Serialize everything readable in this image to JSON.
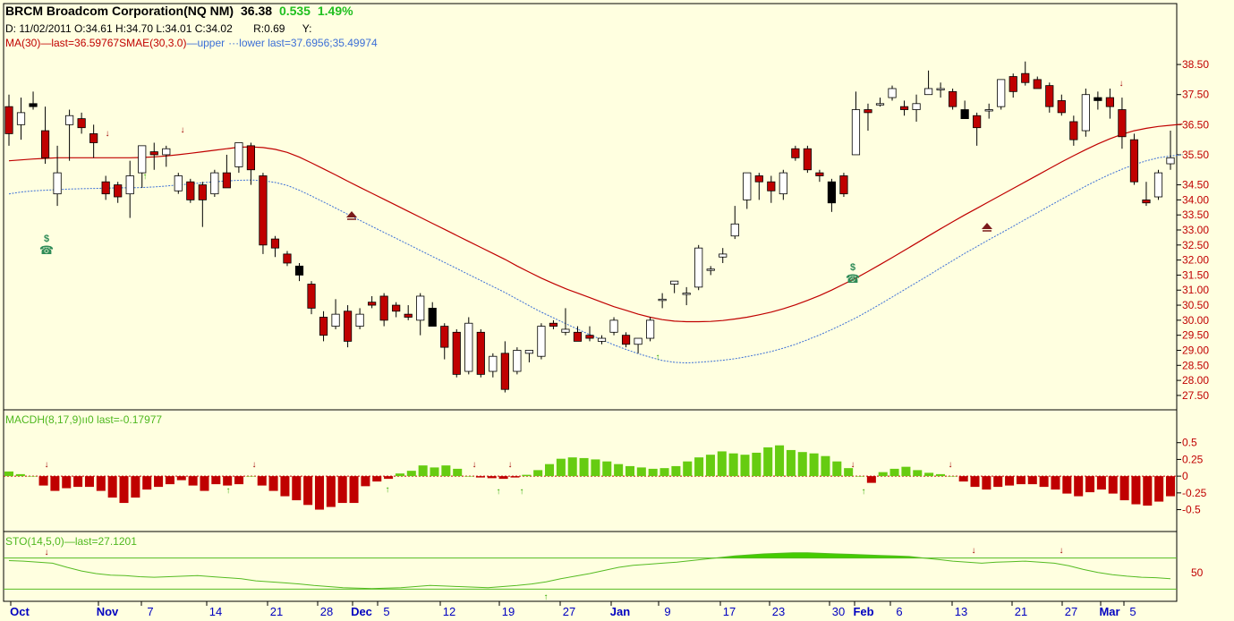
{
  "header": {
    "ticker_line": "BRCM Broadcom Corporation(NQ NM)",
    "price": "36.38",
    "change": "0.535",
    "change_pct": "1.49%",
    "ohlc_line": "D: 11/02/2011 O:34.61 H:34.70 L:34.01 C:34.02",
    "r_label": "R:0.69",
    "y_label": "Y:",
    "ma_legend": "MA(30)",
    "ma_last": "last=36.59767",
    "smae_legend": "SMAE(30,3.0)",
    "smae_upper": "upper",
    "smae_lower": "lower",
    "smae_last": "last=37.6956;35.49974"
  },
  "colors": {
    "background": "#FFFFE0",
    "up_candle": "#FFFFFF",
    "down_candle": "#C00000",
    "ma_line": "#C00000",
    "smae_line": "#3C6FD6",
    "macd_pos": "#66CC11",
    "macd_neg": "#C00000",
    "sto_fill": "#44CC00",
    "axis_text": "#C00000",
    "date_text": "#0000C0"
  },
  "chart_data": [
    {
      "type": "candlestick",
      "ylim": [
        27.2,
        38.8
      ],
      "y_ticks": [
        "38.50",
        "37.50",
        "36.50",
        "35.50",
        "34.50",
        "34.00",
        "33.50",
        "33.00",
        "32.50",
        "32.00",
        "31.50",
        "31.00",
        "30.50",
        "30.00",
        "29.50",
        "29.00",
        "28.50",
        "28.00",
        "27.50"
      ],
      "x_labels": [
        "Oct",
        "Nov",
        "7",
        "14",
        "21",
        "28",
        "Dec",
        "5",
        "12",
        "19",
        "27",
        "Jan",
        "9",
        "17",
        "23",
        "30",
        "Feb",
        "6",
        "13",
        "21",
        "27",
        "Mar",
        "5"
      ],
      "ohlc": [
        [
          37.1,
          37.5,
          35.8,
          36.2
        ],
        [
          36.5,
          37.4,
          36.0,
          36.9
        ],
        [
          37.2,
          37.6,
          37.0,
          37.1
        ],
        [
          36.3,
          37.1,
          35.2,
          35.4
        ],
        [
          34.2,
          35.8,
          33.8,
          34.9
        ],
        [
          36.5,
          37.0,
          35.3,
          36.8
        ],
        [
          36.7,
          36.9,
          36.2,
          36.4
        ],
        [
          36.2,
          36.5,
          35.4,
          35.9
        ],
        [
          34.6,
          34.8,
          34.0,
          34.2
        ],
        [
          34.5,
          34.6,
          33.9,
          34.1
        ],
        [
          34.2,
          35.3,
          33.4,
          34.8
        ],
        [
          34.9,
          35.8,
          34.4,
          35.8
        ],
        [
          35.6,
          35.9,
          35.0,
          35.5
        ],
        [
          35.5,
          35.8,
          35.1,
          35.7
        ],
        [
          34.3,
          34.9,
          34.2,
          34.8
        ],
        [
          34.6,
          34.7,
          33.9,
          34.0
        ],
        [
          34.5,
          34.6,
          33.1,
          34.0
        ],
        [
          34.2,
          35.0,
          34.1,
          34.9
        ],
        [
          34.9,
          35.5,
          34.5,
          34.4
        ],
        [
          35.1,
          35.9,
          34.9,
          35.9
        ],
        [
          35.8,
          35.9,
          34.5,
          35.0
        ],
        [
          34.8,
          34.9,
          32.2,
          32.5
        ],
        [
          32.7,
          32.8,
          32.1,
          32.4
        ],
        [
          32.2,
          32.3,
          31.8,
          31.9
        ],
        [
          31.8,
          31.9,
          31.3,
          31.5
        ],
        [
          31.2,
          31.3,
          30.2,
          30.4
        ],
        [
          30.1,
          30.3,
          29.3,
          29.5
        ],
        [
          29.8,
          30.7,
          29.7,
          30.2
        ],
        [
          30.3,
          30.5,
          29.1,
          29.3
        ],
        [
          29.8,
          30.4,
          29.7,
          30.2
        ],
        [
          30.6,
          30.8,
          30.4,
          30.5
        ],
        [
          30.8,
          30.9,
          29.8,
          30.0
        ],
        [
          30.5,
          30.6,
          30.1,
          30.3
        ],
        [
          30.2,
          30.5,
          30.0,
          30.1
        ],
        [
          30.0,
          30.9,
          29.5,
          30.8
        ],
        [
          30.4,
          30.6,
          29.8,
          29.8
        ],
        [
          29.8,
          29.9,
          28.7,
          29.1
        ],
        [
          29.6,
          29.7,
          28.1,
          28.2
        ],
        [
          28.3,
          30.1,
          28.2,
          29.9
        ],
        [
          29.6,
          29.7,
          28.1,
          28.2
        ],
        [
          28.3,
          28.9,
          28.1,
          28.8
        ],
        [
          28.9,
          29.3,
          27.6,
          27.7
        ],
        [
          28.3,
          29.1,
          28.2,
          29.0
        ],
        [
          28.9,
          29.0,
          28.6,
          29.0
        ],
        [
          28.8,
          29.9,
          28.7,
          29.8
        ],
        [
          29.9,
          30.0,
          29.7,
          29.8
        ],
        [
          29.6,
          30.4,
          29.5,
          29.7
        ],
        [
          29.6,
          29.8,
          29.3,
          29.3
        ],
        [
          29.5,
          29.8,
          29.3,
          29.4
        ],
        [
          29.3,
          29.5,
          29.2,
          29.4
        ],
        [
          29.6,
          30.1,
          29.5,
          30.0
        ],
        [
          29.5,
          29.6,
          29.1,
          29.2
        ],
        [
          29.2,
          29.4,
          28.9,
          29.4
        ],
        [
          29.4,
          30.1,
          29.3,
          30.0
        ],
        [
          30.7,
          30.9,
          30.4,
          30.7
        ],
        [
          31.2,
          31.3,
          30.9,
          31.3
        ],
        [
          30.9,
          31.1,
          30.5,
          30.9
        ],
        [
          31.1,
          32.5,
          31.0,
          32.4
        ],
        [
          31.7,
          31.8,
          31.5,
          31.7
        ],
        [
          32.1,
          32.4,
          31.9,
          32.2
        ],
        [
          32.8,
          33.8,
          32.7,
          33.2
        ],
        [
          34.0,
          34.8,
          33.7,
          34.9
        ],
        [
          34.8,
          34.9,
          34.0,
          34.6
        ],
        [
          34.6,
          34.8,
          33.9,
          34.3
        ],
        [
          34.2,
          35.0,
          34.0,
          34.9
        ],
        [
          35.7,
          35.8,
          35.3,
          35.4
        ],
        [
          35.7,
          35.8,
          34.9,
          35.0
        ],
        [
          34.9,
          35.0,
          34.6,
          34.8
        ],
        [
          34.6,
          34.7,
          33.6,
          33.9
        ],
        [
          34.8,
          34.9,
          34.1,
          34.2
        ],
        [
          35.5,
          37.6,
          35.5,
          37.0
        ],
        [
          37.0,
          37.2,
          36.3,
          36.9
        ],
        [
          37.2,
          37.4,
          37.1,
          37.2
        ],
        [
          37.4,
          37.8,
          37.3,
          37.7
        ],
        [
          37.1,
          37.3,
          36.8,
          37.0
        ],
        [
          37.0,
          37.5,
          36.6,
          37.2
        ],
        [
          37.5,
          38.3,
          37.5,
          37.7
        ],
        [
          37.7,
          37.9,
          37.4,
          37.7
        ],
        [
          37.6,
          37.7,
          37.0,
          37.1
        ],
        [
          37.0,
          37.3,
          36.8,
          36.7
        ],
        [
          36.8,
          36.9,
          35.8,
          36.4
        ],
        [
          37.0,
          37.2,
          36.7,
          37.0
        ],
        [
          37.1,
          38.0,
          37.0,
          38.0
        ],
        [
          38.1,
          38.2,
          37.4,
          37.6
        ],
        [
          38.2,
          38.6,
          37.8,
          37.9
        ],
        [
          38.0,
          38.1,
          37.7,
          37.7
        ],
        [
          37.8,
          37.9,
          36.9,
          37.1
        ],
        [
          37.3,
          37.5,
          36.8,
          36.9
        ],
        [
          36.6,
          36.8,
          35.8,
          36.0
        ],
        [
          36.3,
          37.7,
          36.1,
          37.5
        ],
        [
          37.4,
          37.6,
          37.0,
          37.3
        ],
        [
          37.4,
          37.7,
          36.7,
          37.1
        ],
        [
          37.0,
          37.4,
          35.7,
          36.1
        ],
        [
          36.0,
          36.2,
          34.5,
          34.6
        ],
        [
          34.0,
          34.6,
          33.8,
          33.9
        ],
        [
          34.1,
          35.0,
          34.0,
          34.9
        ],
        [
          35.2,
          36.3,
          35.0,
          35.4
        ]
      ],
      "ma": [
        35.3,
        35.33,
        35.36,
        35.38,
        35.4,
        35.4,
        35.4,
        35.4,
        35.4,
        35.4,
        35.4,
        35.41,
        35.43,
        35.46,
        35.5,
        35.55,
        35.6,
        35.65,
        35.7,
        35.75,
        35.76,
        35.74,
        35.68,
        35.58,
        35.42,
        35.23,
        35.03,
        34.83,
        34.62,
        34.42,
        34.22,
        34.02,
        33.82,
        33.62,
        33.42,
        33.22,
        33.02,
        32.82,
        32.62,
        32.42,
        32.22,
        32.02,
        31.8,
        31.6,
        31.4,
        31.22,
        31.05,
        30.9,
        30.75,
        30.6,
        30.45,
        30.33,
        30.2,
        30.1,
        30.02,
        29.97,
        29.95,
        29.95,
        29.96,
        29.99,
        30.04,
        30.1,
        30.18,
        30.27,
        30.38,
        30.51,
        30.66,
        30.82,
        31.0,
        31.2,
        31.4,
        31.62,
        31.85,
        32.08,
        32.32,
        32.56,
        32.8,
        33.04,
        33.27,
        33.5,
        33.72,
        33.94,
        34.16,
        34.38,
        34.6,
        34.82,
        35.04,
        35.26,
        35.47,
        35.67,
        35.86,
        36.03,
        36.18,
        36.3,
        36.38,
        36.44,
        36.48,
        36.52
      ],
      "smae": [
        34.2,
        34.26,
        34.3,
        34.32,
        34.34,
        34.36,
        34.37,
        34.38,
        34.39,
        34.4,
        34.4,
        34.41,
        34.43,
        34.46,
        34.5,
        34.53,
        34.57,
        34.6,
        34.63,
        34.65,
        34.66,
        34.64,
        34.58,
        34.48,
        34.32,
        34.13,
        33.93,
        33.73,
        33.52,
        33.32,
        33.12,
        32.92,
        32.72,
        32.52,
        32.32,
        32.12,
        31.92,
        31.72,
        31.52,
        31.32,
        31.12,
        30.92,
        30.7,
        30.48,
        30.27,
        30.08,
        29.89,
        29.7,
        29.52,
        29.35,
        29.18,
        29.03,
        28.89,
        28.77,
        28.66,
        28.6,
        28.58,
        28.6,
        28.63,
        28.67,
        28.72,
        28.79,
        28.87,
        28.96,
        29.07,
        29.2,
        29.35,
        29.51,
        29.69,
        29.88,
        30.08,
        30.3,
        30.53,
        30.77,
        31.01,
        31.25,
        31.49,
        31.74,
        31.98,
        32.22,
        32.45,
        32.68,
        32.9,
        33.12,
        33.35,
        33.57,
        33.8,
        34.02,
        34.24,
        34.46,
        34.66,
        34.85,
        35.02,
        35.17,
        35.3,
        35.4,
        35.46,
        35.5
      ]
    },
    {
      "type": "bar",
      "ylim": [
        -0.8,
        0.75
      ],
      "y_ticks": [
        "0.5",
        "0.25",
        "0",
        "-0.25",
        "-0.5"
      ],
      "values": [
        0.07,
        0.03,
        0.0,
        -0.14,
        -0.22,
        -0.18,
        -0.16,
        -0.16,
        -0.22,
        -0.32,
        -0.4,
        -0.32,
        -0.2,
        -0.16,
        -0.12,
        -0.06,
        -0.14,
        -0.22,
        -0.12,
        -0.14,
        -0.12,
        0.0,
        -0.14,
        -0.22,
        -0.3,
        -0.36,
        -0.43,
        -0.5,
        -0.46,
        -0.4,
        -0.4,
        -0.15,
        -0.08,
        -0.04,
        0.04,
        0.08,
        0.16,
        0.13,
        0.16,
        0.11,
        0.0,
        -0.02,
        -0.03,
        -0.04,
        -0.02,
        0.02,
        0.09,
        0.18,
        0.26,
        0.28,
        0.27,
        0.25,
        0.22,
        0.18,
        0.15,
        0.13,
        0.11,
        0.12,
        0.15,
        0.22,
        0.28,
        0.32,
        0.37,
        0.34,
        0.32,
        0.35,
        0.43,
        0.46,
        0.39,
        0.36,
        0.34,
        0.3,
        0.22,
        0.12,
        0.0,
        -0.1,
        0.06,
        0.11,
        0.14,
        0.09,
        0.05,
        0.03,
        0.0,
        -0.08,
        -0.16,
        -0.2,
        -0.16,
        -0.14,
        -0.12,
        -0.12,
        -0.16,
        -0.2,
        -0.26,
        -0.3,
        -0.24,
        -0.2,
        -0.26,
        -0.36,
        -0.42,
        -0.44,
        -0.38,
        -0.3
      ]
    },
    {
      "type": "area",
      "ylim": [
        0,
        100
      ],
      "y_ticks": [
        "50"
      ],
      "values": [
        75,
        74,
        72,
        70,
        62,
        55,
        50,
        47,
        46,
        44,
        43,
        44,
        45,
        46,
        44,
        42,
        40,
        36,
        34,
        32,
        30,
        27,
        25,
        23,
        22,
        21,
        22,
        23,
        25,
        27,
        26,
        25,
        24,
        23,
        25,
        27,
        30,
        34,
        40,
        45,
        50,
        56,
        62,
        66,
        68,
        70,
        72,
        75,
        78,
        81,
        84,
        86,
        88,
        89,
        90,
        90,
        89,
        88,
        87,
        86,
        85,
        84,
        83,
        80,
        77,
        74,
        72,
        70,
        72,
        73,
        74,
        72,
        70,
        65,
        58,
        52,
        48,
        45,
        43,
        42,
        40
      ]
    }
  ]
}
